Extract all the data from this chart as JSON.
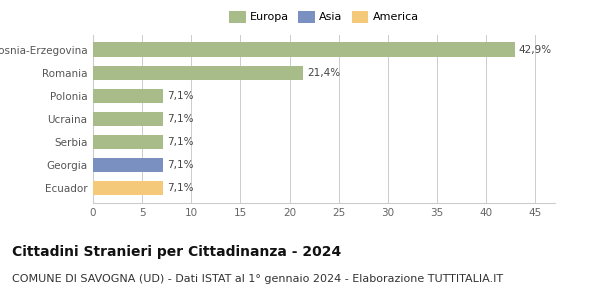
{
  "categories": [
    "Ecuador",
    "Georgia",
    "Serbia",
    "Ucraina",
    "Polonia",
    "Romania",
    "Bosnia-Erzegovina"
  ],
  "values": [
    7.1,
    7.1,
    7.1,
    7.1,
    7.1,
    21.4,
    42.9
  ],
  "labels": [
    "7,1%",
    "7,1%",
    "7,1%",
    "7,1%",
    "7,1%",
    "21,4%",
    "42,9%"
  ],
  "colors": [
    "#f5c97a",
    "#7a90c0",
    "#a8bc8a",
    "#a8bc8a",
    "#a8bc8a",
    "#a8bc8a",
    "#a8bc8a"
  ],
  "legend_items": [
    {
      "label": "Europa",
      "color": "#a8bc8a"
    },
    {
      "label": "Asia",
      "color": "#7a90c0"
    },
    {
      "label": "America",
      "color": "#f5c97a"
    }
  ],
  "xlim": [
    0,
    47
  ],
  "xticks": [
    0,
    5,
    10,
    15,
    20,
    25,
    30,
    35,
    40,
    45
  ],
  "title": "Cittadini Stranieri per Cittadinanza - 2024",
  "subtitle": "COMUNE DI SAVOGNA (UD) - Dati ISTAT al 1° gennaio 2024 - Elaborazione TUTTITALIA.IT",
  "title_fontsize": 10,
  "subtitle_fontsize": 8,
  "label_fontsize": 7.5,
  "tick_fontsize": 7.5,
  "bar_height": 0.62,
  "background_color": "#ffffff",
  "grid_color": "#cccccc"
}
